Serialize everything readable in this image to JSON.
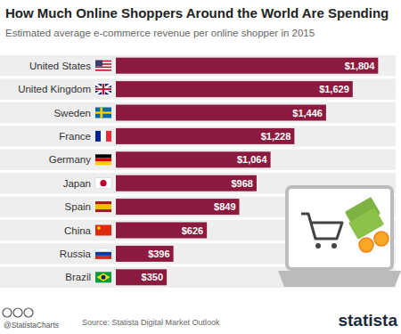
{
  "chart_data": {
    "type": "bar",
    "orientation": "horizontal",
    "title": "How Much Online Shoppers Around the World Are Spending",
    "subtitle": "Estimated average e-commerce revenue per online shopper in 2015",
    "categories": [
      "United States",
      "United Kingdom",
      "Sweden",
      "France",
      "Germany",
      "Japan",
      "Spain",
      "China",
      "Russia",
      "Brazil"
    ],
    "values": [
      1804,
      1629,
      1446,
      1228,
      1064,
      968,
      849,
      626,
      396,
      350
    ],
    "value_labels": [
      "$1,804",
      "$1,629",
      "$1,446",
      "$1,228",
      "$1,064",
      "$968",
      "$849",
      "$626",
      "$396",
      "$350"
    ],
    "data_labels": true,
    "color": "#8b1a3e",
    "xlim": [
      0,
      1900
    ],
    "tick_labels": false,
    "grid": false,
    "source": "Source: Statista Digital Market Outlook",
    "credit": "@StatistaCharts",
    "logo": "statista"
  }
}
